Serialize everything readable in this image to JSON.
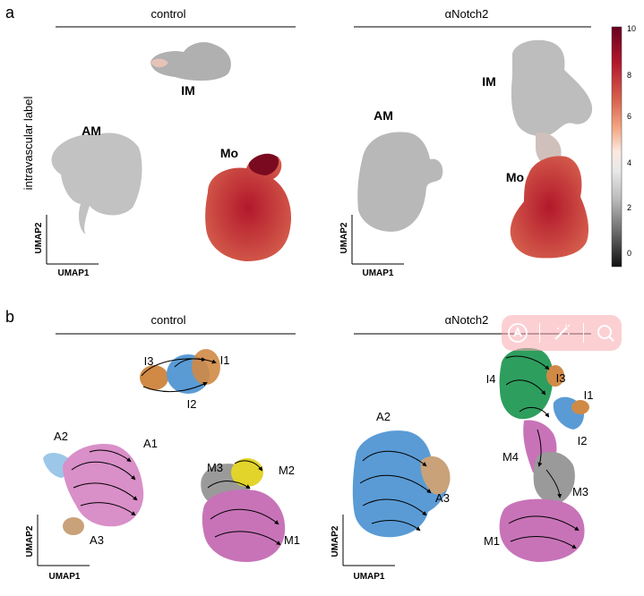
{
  "panel_a": {
    "letter": "a",
    "left_title": "control",
    "right_title": "αNotch2",
    "y_label": "intravascular label",
    "control_clusters": {
      "im": "IM",
      "am": "AM",
      "mo": "Mo"
    },
    "notch_clusters": {
      "am": "AM",
      "im": "IM",
      "mo": "Mo"
    },
    "axis_x": "UMAP1",
    "axis_y": "UMAP2",
    "colorbar_ticks": [
      "10",
      "8",
      "6",
      "4",
      "2",
      "0"
    ],
    "colorbar_colors": [
      "#67001f",
      "#b2182b",
      "#d6604d",
      "#f4a582",
      "#fddbc7",
      "#f7f7f7",
      "#e0e0e0",
      "#bababa",
      "#878787",
      "#4d4d4d",
      "#1a1a1a"
    ]
  },
  "panel_b": {
    "letter": "b",
    "left_title": "control",
    "right_title": "αNotch2",
    "control_labels": {
      "i3": "I3",
      "i1": "I1",
      "i2": "I2",
      "a2": "A2",
      "a1": "A1",
      "a3": "A3",
      "m3": "M3",
      "m2": "M2",
      "m1": "M1"
    },
    "notch_labels": {
      "i4": "I4",
      "i3": "I3",
      "i1": "I1",
      "i2": "I2",
      "a2": "A2",
      "a3": "A3",
      "m4": "M4",
      "m3": "M3",
      "m1": "M1"
    },
    "axis_x": "UMAP1",
    "axis_y": "UMAP2",
    "cluster_colors": {
      "blue": "#5a9bd5",
      "orange": "#d08a45",
      "pink": "#d98fc8",
      "lightblue": "#9cc7e8",
      "green": "#2e9e5e",
      "yellow": "#e2d42a",
      "grey": "#9a9a9a",
      "magenta": "#c873b8",
      "tan": "#c9a27a"
    }
  },
  "toolbar": {
    "icons": [
      "ai-assistant-icon",
      "magic-wand-icon",
      "search-icon"
    ]
  }
}
